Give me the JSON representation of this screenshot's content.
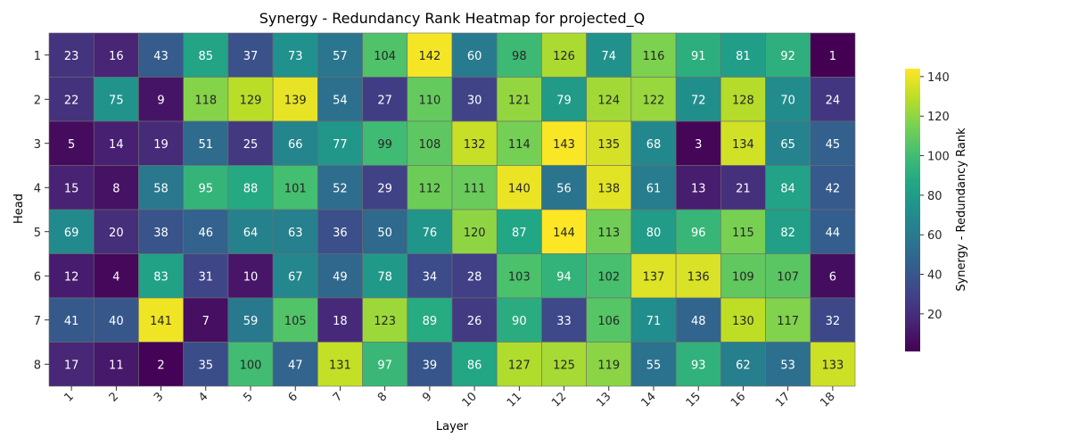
{
  "chart_data": {
    "type": "heatmap",
    "title": "Synergy - Redundancy Rank Heatmap for projected_Q",
    "xlabel": "Layer",
    "ylabel": "Head",
    "x_categories": [
      "1",
      "2",
      "3",
      "4",
      "5",
      "6",
      "7",
      "8",
      "9",
      "10",
      "11",
      "12",
      "13",
      "14",
      "15",
      "16",
      "17",
      "18"
    ],
    "y_categories": [
      "1",
      "2",
      "3",
      "4",
      "5",
      "6",
      "7",
      "8"
    ],
    "values": [
      [
        23,
        16,
        43,
        85,
        37,
        73,
        57,
        104,
        142,
        60,
        98,
        126,
        74,
        116,
        91,
        81,
        92,
        1
      ],
      [
        22,
        75,
        9,
        118,
        129,
        139,
        54,
        27,
        110,
        30,
        121,
        79,
        124,
        122,
        72,
        128,
        70,
        24
      ],
      [
        5,
        14,
        19,
        51,
        25,
        66,
        77,
        99,
        108,
        132,
        114,
        143,
        135,
        68,
        3,
        134,
        65,
        45
      ],
      [
        15,
        8,
        58,
        95,
        88,
        101,
        52,
        29,
        112,
        111,
        140,
        56,
        138,
        61,
        13,
        21,
        84,
        42
      ],
      [
        69,
        20,
        38,
        46,
        64,
        63,
        36,
        50,
        76,
        120,
        87,
        144,
        113,
        80,
        96,
        115,
        82,
        44
      ],
      [
        12,
        4,
        83,
        31,
        10,
        67,
        49,
        78,
        34,
        28,
        103,
        94,
        102,
        137,
        136,
        109,
        107,
        6
      ],
      [
        41,
        40,
        141,
        7,
        59,
        105,
        18,
        123,
        89,
        26,
        90,
        33,
        106,
        71,
        48,
        130,
        117,
        32
      ],
      [
        17,
        11,
        2,
        35,
        100,
        47,
        131,
        97,
        39,
        86,
        127,
        125,
        119,
        55,
        93,
        62,
        53,
        133
      ]
    ],
    "colormap": "viridis",
    "vmin": 1,
    "vmax": 144,
    "colorbar": {
      "label": "Synergy - Redundancy Rank",
      "ticks": [
        20,
        40,
        60,
        80,
        100,
        120,
        140
      ]
    },
    "grid": false,
    "legend": "colorbar-right"
  }
}
